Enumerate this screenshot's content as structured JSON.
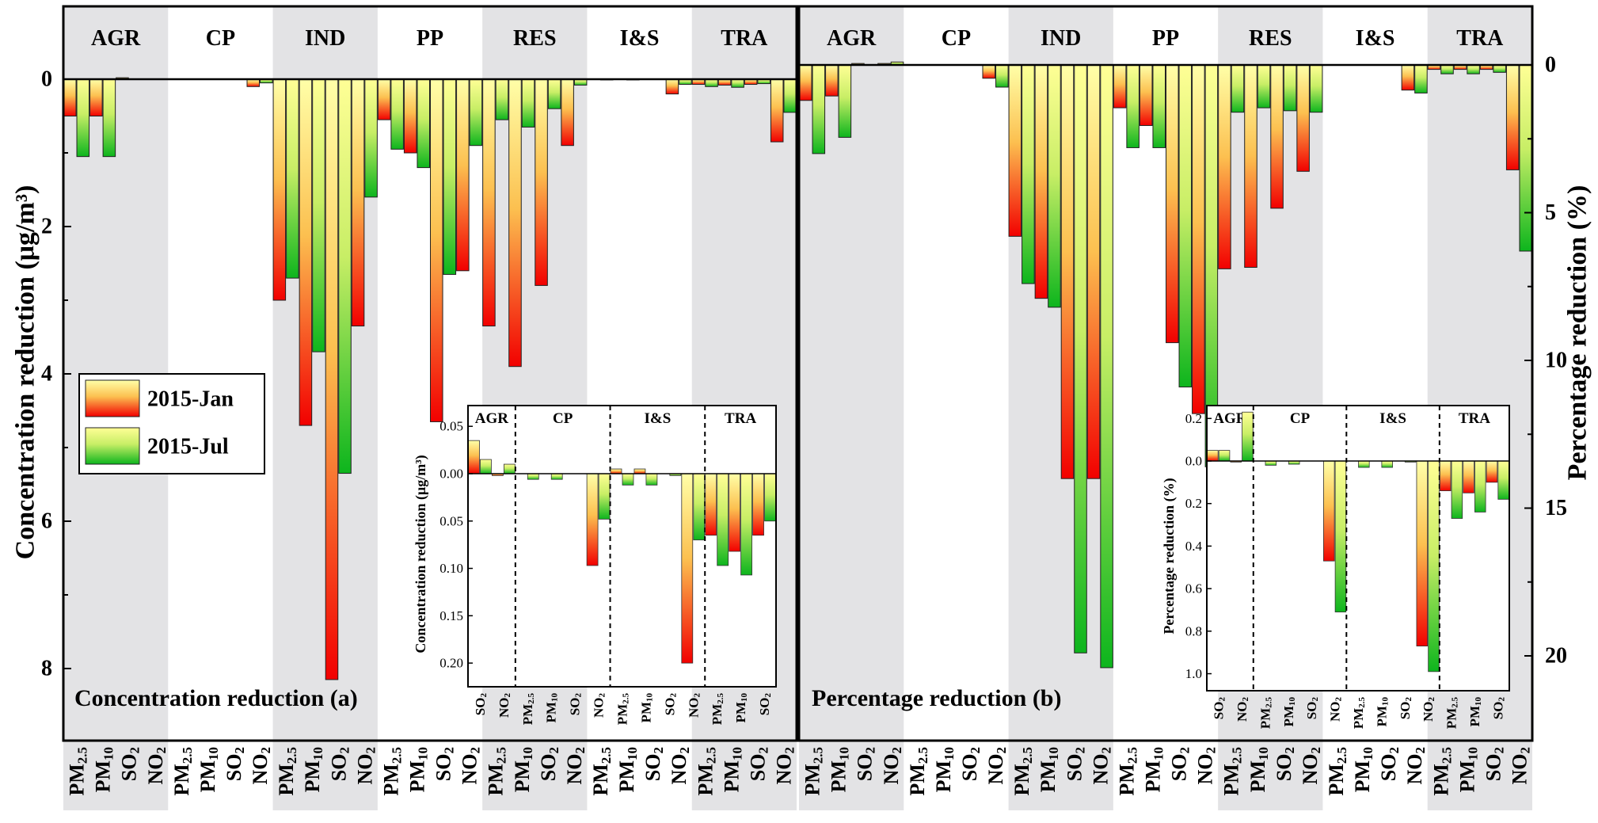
{
  "chart_data": [
    {
      "id": "a",
      "type": "bar",
      "title": "Concentration reduction (a)",
      "ylabel": "Concentration reduction (μg/m³)",
      "ylim": [
        -1.0,
        9.0
      ],
      "yticks": [
        0,
        2,
        4,
        6,
        8
      ],
      "inverted": true,
      "groups": [
        "AGR",
        "CP",
        "IND",
        "PP",
        "RES",
        "I&S",
        "TRA"
      ],
      "species": [
        "PM2.5",
        "PM10",
        "SO2",
        "NO2"
      ],
      "legend": [
        "2015-Jan",
        "2015-Jul"
      ],
      "legend_position": "left",
      "series": [
        {
          "name": "2015-Jan",
          "values": [
            [
              0.5,
              0.5,
              -0.02,
              0
            ],
            [
              0,
              0,
              0,
              0.1
            ],
            [
              3.0,
              4.7,
              8.15,
              3.35
            ],
            [
              0.55,
              1.0,
              4.65,
              2.6
            ],
            [
              3.35,
              3.9,
              2.8,
              0.9
            ],
            [
              0,
              0,
              0,
              0.2
            ],
            [
              0.07,
              0.08,
              0.07,
              0.85
            ]
          ]
        },
        {
          "name": "2015-Jul",
          "values": [
            [
              1.05,
              1.05,
              0,
              0
            ],
            [
              0,
              0,
              0,
              0.05
            ],
            [
              2.7,
              3.7,
              5.35,
              1.6
            ],
            [
              0.95,
              1.2,
              2.65,
              0.9
            ],
            [
              0.55,
              0.65,
              0.4,
              0.08
            ],
            [
              0.01,
              0.01,
              0,
              0.07
            ],
            [
              0.1,
              0.11,
              0.06,
              0.45
            ]
          ]
        }
      ],
      "inset": {
        "ylabel": "Concentration reduction (μg/m³)",
        "ylim": [
          -0.065,
          0.225
        ],
        "yticks": [
          -0.05,
          0.0,
          0.05,
          0.1,
          0.15,
          0.2
        ],
        "ytick_labels": [
          "0.05",
          "0.00",
          "0.05",
          "0.10",
          "0.15",
          "0.20"
        ],
        "groups": [
          {
            "name": "AGR",
            "species": [
              "SO2",
              "NO2"
            ],
            "jan": [
              -0.035,
              0.002
            ],
            "jul": [
              -0.015,
              -0.01
            ]
          },
          {
            "name": "CP",
            "species": [
              "PM2.5",
              "PM10",
              "SO2",
              "NO2"
            ],
            "jan": [
              0,
              0,
              0,
              0.097
            ],
            "jul": [
              0.006,
              0.006,
              0,
              0.048
            ]
          },
          {
            "name": "I&S",
            "species": [
              "PM2.5",
              "PM10",
              "SO2",
              "NO2"
            ],
            "jan": [
              -0.005,
              -0.005,
              0,
              0.2
            ],
            "jul": [
              0.012,
              0.012,
              0.002,
              0.07
            ]
          },
          {
            "name": "TRA",
            "species": [
              "PM2.5",
              "PM10",
              "SO2"
            ],
            "jan": [
              0.065,
              0.082,
              0.065
            ],
            "jul": [
              0.097,
              0.107,
              0.05
            ]
          }
        ]
      }
    },
    {
      "id": "b",
      "type": "bar",
      "title": "Percentage reduction (b)",
      "ylabel": "Percentage reduction (%)",
      "ylim": [
        -2.5,
        22.5
      ],
      "yticks": [
        0,
        5,
        10,
        15,
        20
      ],
      "inverted": true,
      "groups": [
        "AGR",
        "CP",
        "IND",
        "PP",
        "RES",
        "I&S",
        "TRA"
      ],
      "species": [
        "PM2.5",
        "PM10",
        "SO2",
        "NO2"
      ],
      "series": [
        {
          "name": "2015-Jan",
          "values": [
            [
              1.2,
              1.05,
              -0.05,
              -0.05
            ],
            [
              0,
              0,
              0,
              0.45
            ],
            [
              5.8,
              7.9,
              14.0,
              14.0
            ],
            [
              1.45,
              2.05,
              9.4,
              11.8
            ],
            [
              6.9,
              6.85,
              4.85,
              3.6
            ],
            [
              0,
              0,
              0,
              0.85
            ],
            [
              0.15,
              0.15,
              0.15,
              3.55
            ]
          ]
        },
        {
          "name": "2015-Jul",
          "values": [
            [
              3.0,
              2.45,
              0,
              -0.1
            ],
            [
              0,
              0,
              0,
              0.75
            ],
            [
              7.4,
              8.2,
              19.9,
              20.4
            ],
            [
              2.8,
              2.8,
              10.9,
              13.6
            ],
            [
              1.6,
              1.45,
              1.55,
              1.6
            ],
            [
              0,
              0,
              0,
              0.95
            ],
            [
              0.3,
              0.3,
              0.25,
              6.3
            ]
          ]
        }
      ],
      "inset": {
        "ylabel": "Percentage reduction (%)",
        "ylim": [
          -0.3,
          1.08
        ],
        "yticks": [
          -0.2,
          0.0,
          0.2,
          0.4,
          0.6,
          0.8,
          1.0
        ],
        "ytick_labels": [
          "0.2",
          "0.0",
          "0.2",
          "0.4",
          "0.6",
          "0.8",
          "1.0"
        ],
        "groups": [
          {
            "name": "AGR",
            "species": [
              "SO2",
              "NO2"
            ],
            "jan": [
              -0.05,
              0.005
            ],
            "jul": [
              -0.05,
              -0.23
            ]
          },
          {
            "name": "CP",
            "species": [
              "PM2.5",
              "PM10",
              "SO2",
              "NO2"
            ],
            "jan": [
              0,
              0,
              0,
              0.47
            ],
            "jul": [
              0.02,
              0.015,
              0,
              0.71
            ]
          },
          {
            "name": "I&S",
            "species": [
              "PM2.5",
              "PM10",
              "SO2",
              "NO2"
            ],
            "jan": [
              0,
              0,
              0,
              0.87
            ],
            "jul": [
              0.03,
              0.03,
              0.005,
              0.99
            ]
          },
          {
            "name": "TRA",
            "species": [
              "PM2.5",
              "PM10",
              "SO2"
            ],
            "jan": [
              0.14,
              0.15,
              0.1
            ],
            "jul": [
              0.27,
              0.24,
              0.18
            ]
          }
        ]
      }
    }
  ]
}
